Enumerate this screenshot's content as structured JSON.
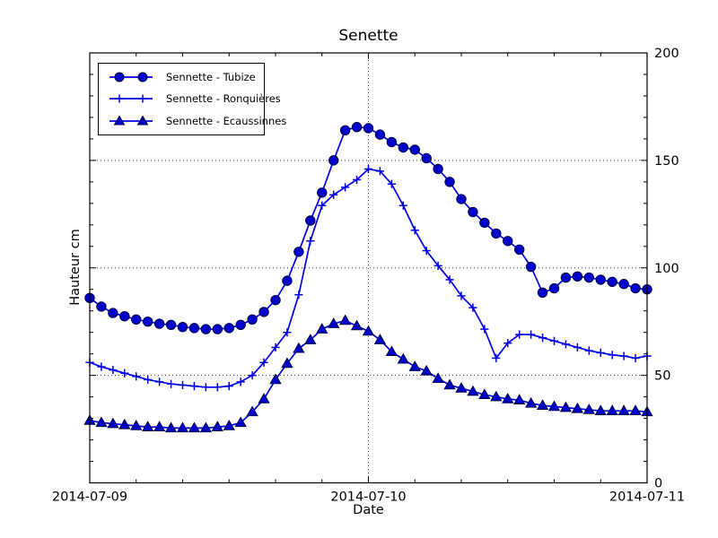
{
  "chart_data": {
    "type": "line",
    "title": "Senette",
    "xlabel": "Date",
    "ylabel": "Hauteur cm",
    "x_unit": "hours since 2014-07-09 00:00",
    "x_start_hour": 0,
    "x_step_hours": 1,
    "xlim_hours": [
      0,
      48
    ],
    "ylim": [
      0,
      200
    ],
    "x_major_ticks_hours": [
      0,
      24,
      48
    ],
    "x_ticklabels": [
      "2014-07-09",
      "2014-07-10",
      "2014-07-11"
    ],
    "x_minor_tick_step_hours": 4,
    "y_major_ticks": [
      0,
      50,
      100,
      150,
      200
    ],
    "y_ticklabels": [
      "0",
      "50",
      "100",
      "150",
      "200"
    ],
    "y_minor_tick_step": 10,
    "y_tick_label_side": "right",
    "grid": "dotted gridlines at major ticks (y: 50/100/150, x: 2014-07-10)",
    "legend_position": "upper-left",
    "colors": {
      "line": "#0000ee",
      "marker_fill": "#0000cc",
      "marker_edge": "#000044",
      "axis": "#000000",
      "grid": "#000000",
      "background": "#ffffff"
    },
    "series": [
      {
        "id": "tubize",
        "name": "Sennette - Tubize",
        "marker": "circle",
        "values": [
          86,
          82,
          79,
          77.5,
          76,
          75,
          74,
          73.5,
          72.5,
          72,
          71.5,
          71.5,
          72,
          73.5,
          76,
          79.5,
          85,
          94,
          107.5,
          122,
          135,
          150,
          164,
          165.5,
          165,
          162,
          158.5,
          156,
          155,
          151,
          146,
          140,
          132,
          126,
          121,
          116,
          112.5,
          108.5,
          100.5,
          88.5,
          90.5,
          95.5,
          96,
          95.5,
          94.5,
          93.5,
          92.5,
          90.5,
          90
        ]
      },
      {
        "id": "ronquieres",
        "name": "Sennette - Ronquières",
        "marker": "plus",
        "values": [
          56,
          54,
          52.5,
          51,
          49.5,
          48,
          47,
          46,
          45.5,
          45,
          44.5,
          44.5,
          45,
          47,
          50,
          56,
          63,
          70,
          87.5,
          112.5,
          129,
          134,
          137.5,
          141,
          146,
          145,
          139,
          129,
          117.5,
          108,
          101,
          94.5,
          87,
          81.5,
          71.5,
          58,
          65,
          69,
          69,
          67.5,
          66,
          64.5,
          63,
          61.5,
          60.5,
          59.5,
          59,
          58,
          59
        ]
      },
      {
        "id": "ecaussinnes",
        "name": "Sennette - Ecaussinnes",
        "marker": "triangle",
        "values": [
          29,
          28,
          27.5,
          27,
          26.5,
          26,
          26,
          25.5,
          25.5,
          25.5,
          25.5,
          26,
          26.5,
          28,
          33,
          39,
          48,
          55.5,
          62.5,
          66.5,
          71.5,
          74,
          75.5,
          73,
          70.5,
          66.5,
          61,
          57.5,
          54,
          52,
          48.5,
          45.5,
          44,
          42.5,
          41,
          40,
          39,
          38.5,
          37,
          36,
          35.5,
          35,
          34.5,
          34,
          33.5,
          33.5,
          33.5,
          33.5,
          33
        ]
      }
    ]
  }
}
